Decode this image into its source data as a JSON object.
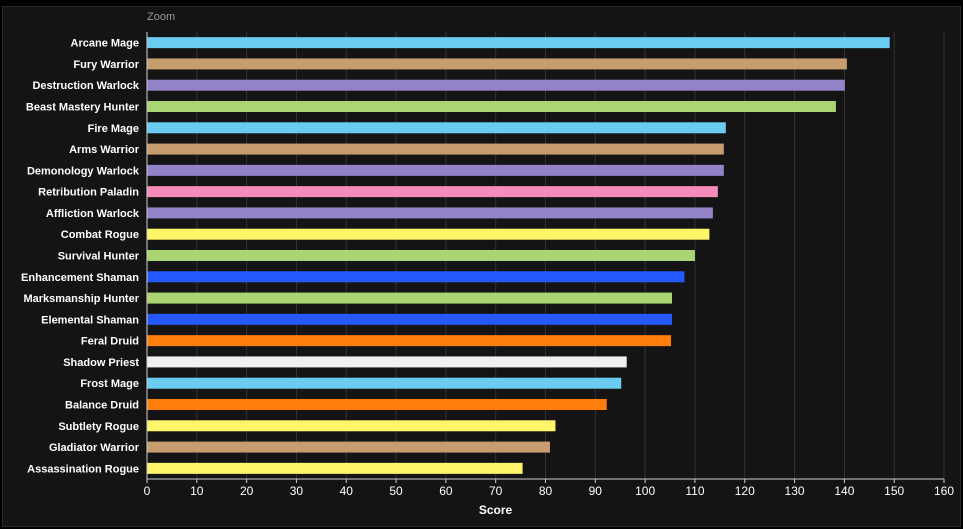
{
  "zoom_label": "Zoom",
  "chart_data": {
    "type": "bar",
    "orientation": "horizontal",
    "xlabel": "Score",
    "xlim": [
      0,
      160
    ],
    "x_ticks": [
      0,
      10,
      20,
      30,
      40,
      50,
      60,
      70,
      80,
      90,
      100,
      110,
      120,
      130,
      140,
      150,
      160
    ],
    "grid": true,
    "categories": [
      "Arcane Mage",
      "Fury Warrior",
      "Destruction Warlock",
      "Beast Mastery Hunter",
      "Fire Mage",
      "Arms Warrior",
      "Demonology Warlock",
      "Retribution Paladin",
      "Affliction Warlock",
      "Combat Rogue",
      "Survival Hunter",
      "Enhancement Shaman",
      "Marksmanship Hunter",
      "Elemental Shaman",
      "Feral Druid",
      "Shadow Priest",
      "Frost Mage",
      "Balance Druid",
      "Subtlety Rogue",
      "Gladiator Warrior",
      "Assassination Rogue"
    ],
    "values": [
      149.1,
      140.5,
      140.1,
      138.3,
      116.2,
      115.8,
      115.8,
      114.6,
      113.6,
      112.9,
      110.0,
      107.9,
      105.4,
      105.4,
      105.2,
      96.3,
      95.2,
      92.3,
      82.0,
      80.9,
      75.4
    ],
    "colors": [
      "#69ccf0",
      "#c79c6e",
      "#9482c9",
      "#abd473",
      "#69ccf0",
      "#c79c6e",
      "#9482c9",
      "#f58cba",
      "#9482c9",
      "#fff569",
      "#abd473",
      "#2459ff",
      "#abd473",
      "#2459ff",
      "#ff7d0a",
      "#f0f0f0",
      "#69ccf0",
      "#ff7d0a",
      "#fff569",
      "#c79c6e",
      "#fff569"
    ]
  }
}
